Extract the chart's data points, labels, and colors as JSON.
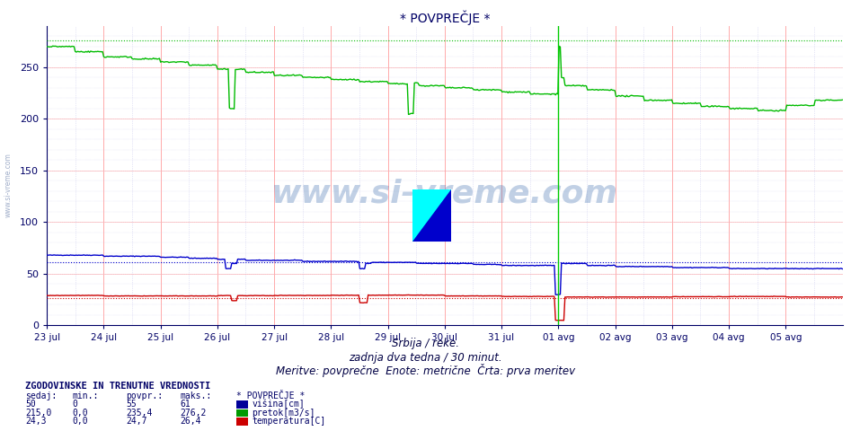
{
  "title": "* POVPREČJE *",
  "background_color": "#ffffff",
  "plot_bg_color": "#ffffff",
  "grid_color_major": "#ffaaaa",
  "grid_color_minor": "#ccccee",
  "ylim": [
    0,
    290
  ],
  "yticks": [
    0,
    50,
    100,
    150,
    200,
    250
  ],
  "x_tick_labels": [
    "23 jul",
    "24 jul",
    "25 jul",
    "26 jul",
    "27 jul",
    "28 jul",
    "29 jul",
    "30 jul",
    "31 jul",
    "01 avg",
    "02 avg",
    "03 avg",
    "04 avg",
    "05 avg"
  ],
  "watermark_text": "www.si-vreme.com",
  "watermark_color": "#3366aa",
  "watermark_alpha": 0.3,
  "title_color": "#000066",
  "axis_color": "#000066",
  "tick_color": "#000066",
  "višina_color": "#0000cc",
  "pretok_color": "#00bb00",
  "temperatura_color": "#cc0000",
  "višina_max": 61,
  "pretok_max": 276.2,
  "temperatura_max": 26.4,
  "vertical_line_x": 9.0,
  "vertical_line_color": "#00cc00",
  "n_points": 672,
  "legend_header": "ZGODOVINSKE IN TRENUTNE VREDNOSTI",
  "legend_series_label": "* POVPREČJE *",
  "row1": [
    "50",
    "0",
    "55",
    "61",
    "višina[cm]"
  ],
  "row2": [
    "215,0",
    "0,0",
    "235,4",
    "276,2",
    "pretok[m3/s]"
  ],
  "row3": [
    "24,3",
    "0,0",
    "24,7",
    "26,4",
    "temperatura[C]"
  ],
  "row1_color": "#000099",
  "row2_color": "#009900",
  "row3_color": "#cc0000"
}
